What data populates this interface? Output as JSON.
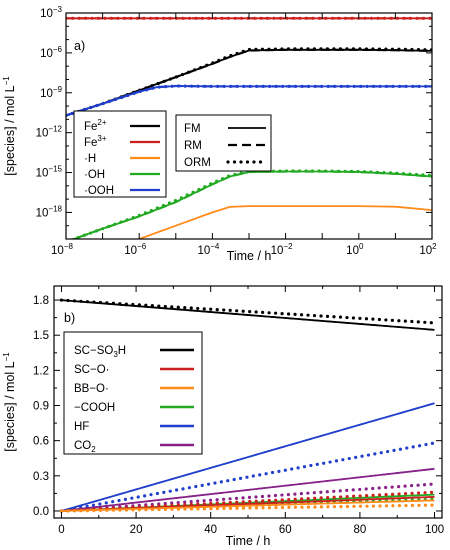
{
  "chart_data": [
    {
      "panel_label": "a)",
      "type": "line",
      "xscale": "log",
      "yscale": "log",
      "xlabel": "Time / h",
      "ylabel": "[species] / mol L",
      "ylabel_sup": "−1",
      "xlim": [
        1e-08,
        100
      ],
      "ylim": [
        1e-20,
        0.001
      ],
      "x_ticks": [
        {
          "v": 1e-08,
          "b": "10",
          "e": "−8"
        },
        {
          "v": 1e-06,
          "b": "10",
          "e": "−6"
        },
        {
          "v": 0.0001,
          "b": "10",
          "e": "−4"
        },
        {
          "v": 0.01,
          "b": "10",
          "e": "−2"
        },
        {
          "v": 1,
          "b": "10",
          "e": "0"
        },
        {
          "v": 100,
          "b": "10",
          "e": "2"
        }
      ],
      "y_ticks": [
        {
          "v": 1e-18,
          "b": "10",
          "e": "−18"
        },
        {
          "v": 1e-15,
          "b": "10",
          "e": "−15"
        },
        {
          "v": 1e-12,
          "b": "10",
          "e": "−12"
        },
        {
          "v": 1e-09,
          "b": "10",
          "e": "−9"
        },
        {
          "v": 1e-06,
          "b": "10",
          "e": "−6"
        },
        {
          "v": 0.001,
          "b": "10",
          "e": "−3"
        }
      ],
      "legend_species": [
        {
          "text": "Fe",
          "sup": "2+",
          "color": "#000000"
        },
        {
          "text": "Fe",
          "sup": "3+",
          "color": "#cc1f1f"
        },
        {
          "text": "·H",
          "sup": "",
          "color": "#ff8c1a"
        },
        {
          "text": "·OH",
          "sup": "",
          "color": "#22aa22"
        },
        {
          "text": "·OOH",
          "sup": "",
          "color": "#1f3fcc"
        }
      ],
      "legend_models": [
        {
          "text": "FM",
          "style": "solid"
        },
        {
          "text": "RM",
          "style": "dashed"
        },
        {
          "text": "ORM",
          "style": "dotted"
        }
      ],
      "series": [
        {
          "species": "Fe3+",
          "color": "#cc1f1f",
          "models": [
            "FM",
            "RM",
            "ORM"
          ],
          "x": [
            1e-08,
            100
          ],
          "y": [
            0.0004,
            0.0004
          ]
        },
        {
          "species": "Fe2+",
          "color": "#000000",
          "models": [
            "FM",
            "RM"
          ],
          "x": [
            1e-08,
            1e-07,
            1e-06,
            1e-05,
            0.0001,
            0.0003,
            0.001,
            0.01,
            0.1,
            1,
            10,
            100
          ],
          "y": [
            2e-11,
            1.5e-10,
            1.5e-09,
            1.5e-08,
            1.5e-07,
            5e-07,
            1.5e-06,
            1.7e-06,
            1.7e-06,
            1.7e-06,
            1.6e-06,
            1.4e-06
          ]
        },
        {
          "species": "Fe2+",
          "color": "#000000",
          "models": [
            "ORM"
          ],
          "x": [
            1e-08,
            1e-07,
            1e-06,
            1e-05,
            0.0001,
            0.0003,
            0.001,
            0.01,
            0.1,
            1,
            10,
            100
          ],
          "y": [
            2e-11,
            1.5e-10,
            1.5e-09,
            1.5e-08,
            1.7e-07,
            6e-07,
            1.8e-06,
            2e-06,
            2e-06,
            2e-06,
            1.9e-06,
            1.7e-06
          ]
        },
        {
          "species": "·OOH",
          "color": "#1f3fcc",
          "models": [
            "FM",
            "RM",
            "ORM"
          ],
          "x": [
            1e-08,
            1e-07,
            1e-06,
            3e-06,
            1e-05,
            0.0001,
            0.01,
            100
          ],
          "y": [
            2e-11,
            1.5e-10,
            1.2e-09,
            2.6e-09,
            3.2e-09,
            3e-09,
            3e-09,
            3e-09
          ]
        },
        {
          "species": "·OH",
          "color": "#22aa22",
          "models": [
            "FM",
            "RM"
          ],
          "x": [
            1e-08,
            1e-07,
            1e-06,
            1e-05,
            0.0001,
            0.0003,
            0.001,
            0.01,
            0.1,
            1,
            10,
            100
          ],
          "y": [
            6e-21,
            6e-20,
            5e-19,
            6e-18,
            1.3e-16,
            5e-16,
            1.1e-15,
            1.2e-15,
            1.2e-15,
            1.1e-15,
            8e-16,
            5e-16
          ]
        },
        {
          "species": "·OH",
          "color": "#22aa22",
          "models": [
            "ORM"
          ],
          "x": [
            1e-08,
            1e-07,
            1e-06,
            1e-05,
            0.0001,
            0.0003,
            0.001,
            0.01,
            0.1,
            1,
            10,
            100
          ],
          "y": [
            6e-21,
            6e-20,
            6e-19,
            8e-18,
            1.6e-16,
            6e-16,
            1.2e-15,
            1.3e-15,
            1.3e-15,
            1.2e-15,
            9e-16,
            6e-16
          ]
        },
        {
          "species": "·H",
          "color": "#ff8c1a",
          "models": [
            "FM"
          ],
          "x": [
            1e-06,
            1e-05,
            0.0001,
            0.0003,
            0.001,
            0.01,
            0.1,
            1,
            10,
            100
          ],
          "y": [
            1e-20,
            1e-19,
            1e-18,
            2.6e-18,
            3e-18,
            3e-18,
            3e-18,
            3e-18,
            2.7e-18,
            1.5e-18
          ]
        }
      ]
    },
    {
      "panel_label": "b)",
      "type": "line",
      "xlabel": "Time / h",
      "ylabel": "[species] / mol L",
      "ylabel_sup": "−1",
      "xlim": [
        -2,
        102
      ],
      "ylim": [
        -0.06,
        1.92
      ],
      "x_ticks": [
        0,
        20,
        40,
        60,
        80,
        100
      ],
      "y_ticks": [
        "0.0",
        "0.3",
        "0.6",
        "0.9",
        "1.2",
        "1.5",
        "1.8"
      ],
      "legend_species": [
        {
          "text": "SC−SO",
          "sub": "3",
          "tail": "H",
          "color": "#000000"
        },
        {
          "text": "SC−O·",
          "sub": "",
          "tail": "",
          "color": "#cc1f1f"
        },
        {
          "text": "BB−O·",
          "sub": "",
          "tail": "",
          "color": "#ff8c1a"
        },
        {
          "text": "−COOH",
          "sub": "",
          "tail": "",
          "color": "#22aa22"
        },
        {
          "text": "HF",
          "sub": "",
          "tail": "",
          "color": "#1f3fcc"
        },
        {
          "text": "CO",
          "sub": "2",
          "tail": "",
          "color": "#882288"
        }
      ],
      "series": [
        {
          "species": "SC−SO3H",
          "color": "#000000",
          "model": "FM",
          "x": [
            0,
            100
          ],
          "y": [
            1.8,
            1.545
          ]
        },
        {
          "species": "SC−SO3H",
          "color": "#000000",
          "model": "ORM",
          "x": [
            0,
            100
          ],
          "y": [
            1.8,
            1.605
          ]
        },
        {
          "species": "HF",
          "color": "#1f3fcc",
          "model": "FM",
          "x": [
            0,
            100
          ],
          "y": [
            0.0,
            0.92
          ]
        },
        {
          "species": "HF",
          "color": "#1f3fcc",
          "model": "ORM",
          "x": [
            0,
            100
          ],
          "y": [
            0.0,
            0.58
          ]
        },
        {
          "species": "CO2",
          "color": "#882288",
          "model": "FM",
          "x": [
            0,
            100
          ],
          "y": [
            0.0,
            0.36
          ]
        },
        {
          "species": "CO2",
          "color": "#882288",
          "model": "ORM",
          "x": [
            0,
            100
          ],
          "y": [
            0.0,
            0.23
          ]
        },
        {
          "species": "−COOH",
          "color": "#22aa22",
          "model": "FM",
          "x": [
            0,
            100
          ],
          "y": [
            0.0,
            0.14
          ]
        },
        {
          "species": "−COOH",
          "color": "#22aa22",
          "model": "ORM",
          "x": [
            0,
            100
          ],
          "y": [
            0.0,
            0.1
          ]
        },
        {
          "species": "SC−O·",
          "color": "#cc1f1f",
          "model": "FM",
          "x": [
            0,
            100
          ],
          "y": [
            0.0,
            0.12
          ]
        },
        {
          "species": "SC−O·",
          "color": "#cc1f1f",
          "model": "ORM",
          "x": [
            0,
            100
          ],
          "y": [
            0.0,
            0.16
          ]
        },
        {
          "species": "BB−O·",
          "color": "#ff8c1a",
          "model": "FM",
          "x": [
            0,
            100
          ],
          "y": [
            0.0,
            0.09
          ]
        },
        {
          "species": "BB−O·",
          "color": "#ff8c1a",
          "model": "ORM",
          "x": [
            0,
            100
          ],
          "y": [
            0.0,
            0.05
          ]
        }
      ]
    }
  ]
}
